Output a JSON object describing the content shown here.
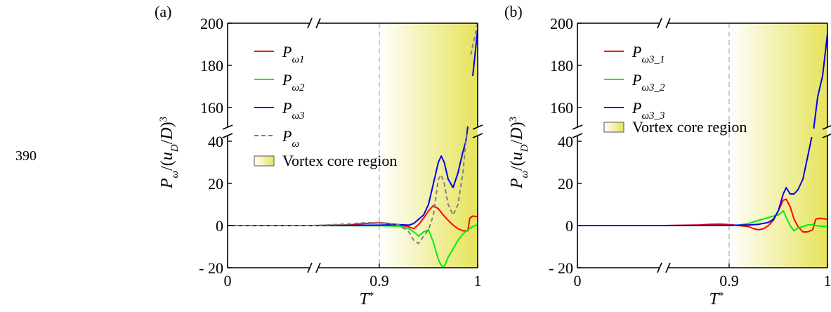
{
  "side_label": "390",
  "chart_data": [
    {
      "type": "line",
      "panel_label": "(a)",
      "xlabel": "T*",
      "ylabel": "Pω/(uD/D)³",
      "x_ticks": [
        "0",
        "0.9",
        "1"
      ],
      "y_ticks_lower": [
        "-20",
        "0",
        "20",
        "40"
      ],
      "y_ticks_upper": [
        "160",
        "180",
        "200"
      ],
      "ylim_lower": [
        -20,
        40
      ],
      "ylim_upper": [
        147,
        200
      ],
      "x_broken_between": [
        0,
        0.85
      ],
      "shaded_region": {
        "label": "Vortex core region",
        "x_from": 0.9,
        "x_to": 1.0,
        "color": "#e6e35a"
      },
      "series": [
        {
          "name": "Pω1",
          "color": "#ff0000",
          "dash": false,
          "points": [
            [
              0,
              0
            ],
            [
              0.85,
              0
            ],
            [
              0.87,
              0.3
            ],
            [
              0.88,
              0.8
            ],
            [
              0.89,
              1.1
            ],
            [
              0.9,
              1.3
            ],
            [
              0.91,
              1.0
            ],
            [
              0.92,
              0.4
            ],
            [
              0.93,
              -0.6
            ],
            [
              0.935,
              -1.5
            ],
            [
              0.94,
              0.5
            ],
            [
              0.945,
              3.5
            ],
            [
              0.95,
              7
            ],
            [
              0.955,
              9.5
            ],
            [
              0.96,
              8
            ],
            [
              0.965,
              5
            ],
            [
              0.97,
              2.5
            ],
            [
              0.975,
              0.2
            ],
            [
              0.98,
              -1.5
            ],
            [
              0.985,
              -2.5
            ],
            [
              0.99,
              -2.5
            ],
            [
              0.992,
              3.5
            ],
            [
              0.995,
              4.5
            ],
            [
              1.0,
              4.2
            ]
          ]
        },
        {
          "name": "Pω2",
          "color": "#00ee00",
          "dash": false,
          "points": [
            [
              0,
              0
            ],
            [
              0.85,
              0
            ],
            [
              0.9,
              -0.1
            ],
            [
              0.92,
              -0.3
            ],
            [
              0.93,
              -1.5
            ],
            [
              0.935,
              -3
            ],
            [
              0.94,
              -5
            ],
            [
              0.945,
              -3
            ],
            [
              0.95,
              -2
            ],
            [
              0.955,
              -8
            ],
            [
              0.96,
              -16
            ],
            [
              0.963,
              -19
            ],
            [
              0.966,
              -19.5
            ],
            [
              0.97,
              -15
            ],
            [
              0.975,
              -11
            ],
            [
              0.98,
              -7
            ],
            [
              0.985,
              -4
            ],
            [
              0.99,
              -2
            ],
            [
              0.995,
              -0.5
            ],
            [
              1.0,
              0.5
            ]
          ]
        },
        {
          "name": "Pω3",
          "color": "#0000ee",
          "dash": false,
          "points": [
            [
              0,
              0
            ],
            [
              0.85,
              0
            ],
            [
              0.9,
              0.2
            ],
            [
              0.92,
              0.4
            ],
            [
              0.93,
              0.2
            ],
            [
              0.935,
              1
            ],
            [
              0.94,
              3
            ],
            [
              0.945,
              5
            ],
            [
              0.95,
              10
            ],
            [
              0.955,
              20
            ],
            [
              0.96,
              30
            ],
            [
              0.963,
              33
            ],
            [
              0.966,
              30
            ],
            [
              0.97,
              22
            ],
            [
              0.975,
              18
            ],
            [
              0.98,
              25
            ],
            [
              0.985,
              35
            ],
            [
              0.988,
              40
            ],
            [
              0.99,
              47
            ],
            [
              0.995,
              175
            ],
            [
              1.0,
              197
            ]
          ]
        },
        {
          "name": "Pω",
          "color": "#808080",
          "dash": true,
          "points": [
            [
              0,
              0
            ],
            [
              0.85,
              0
            ],
            [
              0.87,
              0.8
            ],
            [
              0.88,
              1.2
            ],
            [
              0.9,
              1.5
            ],
            [
              0.91,
              1
            ],
            [
              0.92,
              0.3
            ],
            [
              0.93,
              -3
            ],
            [
              0.935,
              -7
            ],
            [
              0.94,
              -8.5
            ],
            [
              0.945,
              -5
            ],
            [
              0.95,
              -2
            ],
            [
              0.955,
              5
            ],
            [
              0.96,
              22
            ],
            [
              0.963,
              24
            ],
            [
              0.966,
              20
            ],
            [
              0.97,
              10
            ],
            [
              0.975,
              5
            ],
            [
              0.98,
              10
            ],
            [
              0.985,
              25
            ],
            [
              0.988,
              40
            ],
            [
              0.99,
              45
            ],
            [
              0.993,
              185
            ],
            [
              1.0,
              200
            ]
          ]
        }
      ]
    },
    {
      "type": "line",
      "panel_label": "(b)",
      "xlabel": "T*",
      "ylabel": "Pω/(uD/D)³",
      "x_ticks": [
        "0",
        "0.9",
        "1"
      ],
      "y_ticks_lower": [
        "-20",
        "0",
        "20",
        "40"
      ],
      "y_ticks_upper": [
        "160",
        "180",
        "200"
      ],
      "ylim_lower": [
        -20,
        40
      ],
      "ylim_upper": [
        147,
        200
      ],
      "x_broken_between": [
        0,
        0.85
      ],
      "shaded_region": {
        "label": "Vortex core region",
        "x_from": 0.9,
        "x_to": 1.0,
        "color": "#e6e35a"
      },
      "series": [
        {
          "name": "Pω3_1",
          "color": "#ff0000",
          "dash": false,
          "points": [
            [
              0,
              0
            ],
            [
              0.85,
              0
            ],
            [
              0.87,
              0.3
            ],
            [
              0.88,
              0.6
            ],
            [
              0.89,
              0.7
            ],
            [
              0.9,
              0.5
            ],
            [
              0.91,
              0
            ],
            [
              0.92,
              -0.5
            ],
            [
              0.925,
              -1.5
            ],
            [
              0.93,
              -2
            ],
            [
              0.935,
              -1.5
            ],
            [
              0.94,
              0
            ],
            [
              0.945,
              2.5
            ],
            [
              0.95,
              7
            ],
            [
              0.955,
              12
            ],
            [
              0.958,
              12.5
            ],
            [
              0.962,
              9
            ],
            [
              0.966,
              3
            ],
            [
              0.97,
              -0.5
            ],
            [
              0.975,
              -3
            ],
            [
              0.98,
              -3
            ],
            [
              0.985,
              -2
            ],
            [
              0.988,
              3
            ],
            [
              0.992,
              3.5
            ],
            [
              1.0,
              3
            ]
          ]
        },
        {
          "name": "Pω3_2",
          "color": "#00ee00",
          "dash": false,
          "points": [
            [
              0,
              0
            ],
            [
              0.85,
              0
            ],
            [
              0.9,
              0
            ],
            [
              0.91,
              0.2
            ],
            [
              0.92,
              1
            ],
            [
              0.93,
              2.5
            ],
            [
              0.94,
              3.8
            ],
            [
              0.945,
              4.5
            ],
            [
              0.95,
              5
            ],
            [
              0.955,
              7
            ],
            [
              0.958,
              4
            ],
            [
              0.962,
              0
            ],
            [
              0.966,
              -2.5
            ],
            [
              0.97,
              -1
            ],
            [
              0.975,
              -0.5
            ],
            [
              0.98,
              0.3
            ],
            [
              0.985,
              0.5
            ],
            [
              0.99,
              -0.2
            ],
            [
              1.0,
              -0.5
            ]
          ]
        },
        {
          "name": "Pω3_3",
          "color": "#0000ee",
          "dash": false,
          "points": [
            [
              0,
              0
            ],
            [
              0.85,
              0
            ],
            [
              0.9,
              0.1
            ],
            [
              0.91,
              0.2
            ],
            [
              0.92,
              0.3
            ],
            [
              0.93,
              0.6
            ],
            [
              0.94,
              1.5
            ],
            [
              0.945,
              3
            ],
            [
              0.95,
              7
            ],
            [
              0.955,
              15
            ],
            [
              0.958,
              18
            ],
            [
              0.962,
              15
            ],
            [
              0.966,
              15
            ],
            [
              0.97,
              17
            ],
            [
              0.975,
              22
            ],
            [
              0.98,
              33
            ],
            [
              0.984,
              42
            ],
            [
              0.986,
              150
            ],
            [
              0.99,
              165
            ],
            [
              0.995,
              175
            ],
            [
              1.0,
              195
            ]
          ]
        }
      ]
    }
  ]
}
